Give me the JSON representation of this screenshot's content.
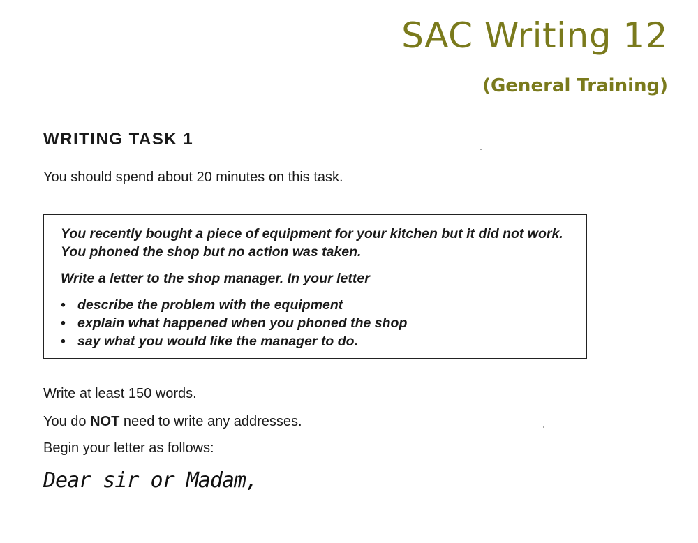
{
  "header": {
    "title": "SAC Writing 12",
    "subtitle": "(General Training)"
  },
  "task": {
    "heading": "WRITING TASK 1",
    "time_instruction": "You should spend about 20 minutes on this task.",
    "prompt": {
      "situation": "You recently bought a piece of equipment for your kitchen but it did not work. You phoned the shop but no action was taken.",
      "instruction": "Write a letter to the shop manager. In your letter",
      "bullets": [
        "describe the problem with the equipment",
        "explain what happened when you phoned the shop",
        "say what you would like the manager to do."
      ]
    },
    "word_count": "Write at least 150 words.",
    "addresses_prefix": "You do ",
    "addresses_emphasis": "NOT",
    "addresses_suffix": " need to write any addresses.",
    "begin_instruction": "Begin your letter as follows:",
    "salutation": "Dear sir or Madam,"
  }
}
